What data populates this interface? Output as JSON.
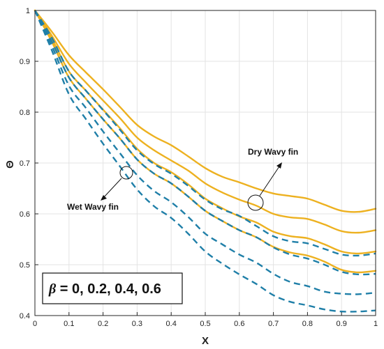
{
  "chart_data": {
    "type": "line",
    "title": "",
    "xlabel": "X",
    "ylabel": "Θ",
    "xlim": [
      0,
      1
    ],
    "ylim": [
      0.4,
      1
    ],
    "xticks": [
      "0",
      "0.1",
      "0.2",
      "0.3",
      "0.4",
      "0.5",
      "0.6",
      "0.7",
      "0.8",
      "0.9",
      "1"
    ],
    "yticks": [
      "0.4",
      "0.5",
      "0.6",
      "0.7",
      "0.8",
      "0.9",
      "1"
    ],
    "grid": true,
    "x": [
      0,
      0.05,
      0.1,
      0.15,
      0.2,
      0.25,
      0.3,
      0.35,
      0.4,
      0.45,
      0.5,
      0.55,
      0.6,
      0.65,
      0.7,
      0.75,
      0.8,
      0.85,
      0.9,
      0.95,
      1.0
    ],
    "colors": {
      "dry": "#EDB120",
      "wet": "#1F7FA8"
    },
    "series": [
      {
        "group": "dry",
        "style": "solid",
        "values": [
          1.0,
          0.958,
          0.912,
          0.878,
          0.845,
          0.81,
          0.775,
          0.752,
          0.735,
          0.713,
          0.69,
          0.673,
          0.662,
          0.65,
          0.64,
          0.635,
          0.63,
          0.618,
          0.606,
          0.604,
          0.61
        ]
      },
      {
        "group": "dry",
        "style": "solid",
        "values": [
          1.0,
          0.95,
          0.895,
          0.858,
          0.823,
          0.788,
          0.75,
          0.725,
          0.705,
          0.685,
          0.66,
          0.642,
          0.628,
          0.616,
          0.6,
          0.593,
          0.59,
          0.579,
          0.566,
          0.563,
          0.568
        ]
      },
      {
        "group": "dry",
        "style": "solid",
        "values": [
          1.0,
          0.944,
          0.88,
          0.842,
          0.805,
          0.768,
          0.728,
          0.7,
          0.682,
          0.658,
          0.63,
          0.611,
          0.595,
          0.583,
          0.565,
          0.556,
          0.552,
          0.54,
          0.526,
          0.522,
          0.526
        ]
      },
      {
        "group": "dry",
        "style": "solid",
        "values": [
          1.0,
          0.938,
          0.868,
          0.826,
          0.786,
          0.748,
          0.707,
          0.679,
          0.66,
          0.634,
          0.606,
          0.586,
          0.568,
          0.554,
          0.535,
          0.524,
          0.518,
          0.506,
          0.49,
          0.485,
          0.488
        ]
      },
      {
        "group": "wet",
        "style": "dashed",
        "values": [
          1.0,
          0.946,
          0.88,
          0.842,
          0.804,
          0.765,
          0.725,
          0.698,
          0.679,
          0.655,
          0.628,
          0.609,
          0.596,
          0.576,
          0.556,
          0.546,
          0.542,
          0.531,
          0.52,
          0.518,
          0.522
        ]
      },
      {
        "group": "wet",
        "style": "dashed",
        "values": [
          1.0,
          0.938,
          0.868,
          0.826,
          0.786,
          0.748,
          0.707,
          0.679,
          0.66,
          0.634,
          0.606,
          0.586,
          0.568,
          0.554,
          0.534,
          0.52,
          0.512,
          0.5,
          0.486,
          0.481,
          0.482
        ]
      },
      {
        "group": "wet",
        "style": "dashed",
        "values": [
          1.0,
          0.93,
          0.852,
          0.808,
          0.762,
          0.719,
          0.676,
          0.645,
          0.623,
          0.594,
          0.561,
          0.54,
          0.52,
          0.504,
          0.482,
          0.466,
          0.458,
          0.447,
          0.443,
          0.442,
          0.445
        ]
      },
      {
        "group": "wet",
        "style": "dashed",
        "values": [
          1.0,
          0.921,
          0.835,
          0.786,
          0.738,
          0.693,
          0.648,
          0.615,
          0.592,
          0.561,
          0.526,
          0.502,
          0.481,
          0.462,
          0.44,
          0.427,
          0.42,
          0.412,
          0.408,
          0.408,
          0.41
        ]
      }
    ],
    "annotations": [
      {
        "text": "Dry Wavy fin",
        "target": "dry"
      },
      {
        "text": "Wet Wavy fin",
        "target": "wet"
      }
    ],
    "parameter_box": {
      "symbol": "β",
      "text": " = 0, 0.2, 0.4, 0.6"
    }
  }
}
